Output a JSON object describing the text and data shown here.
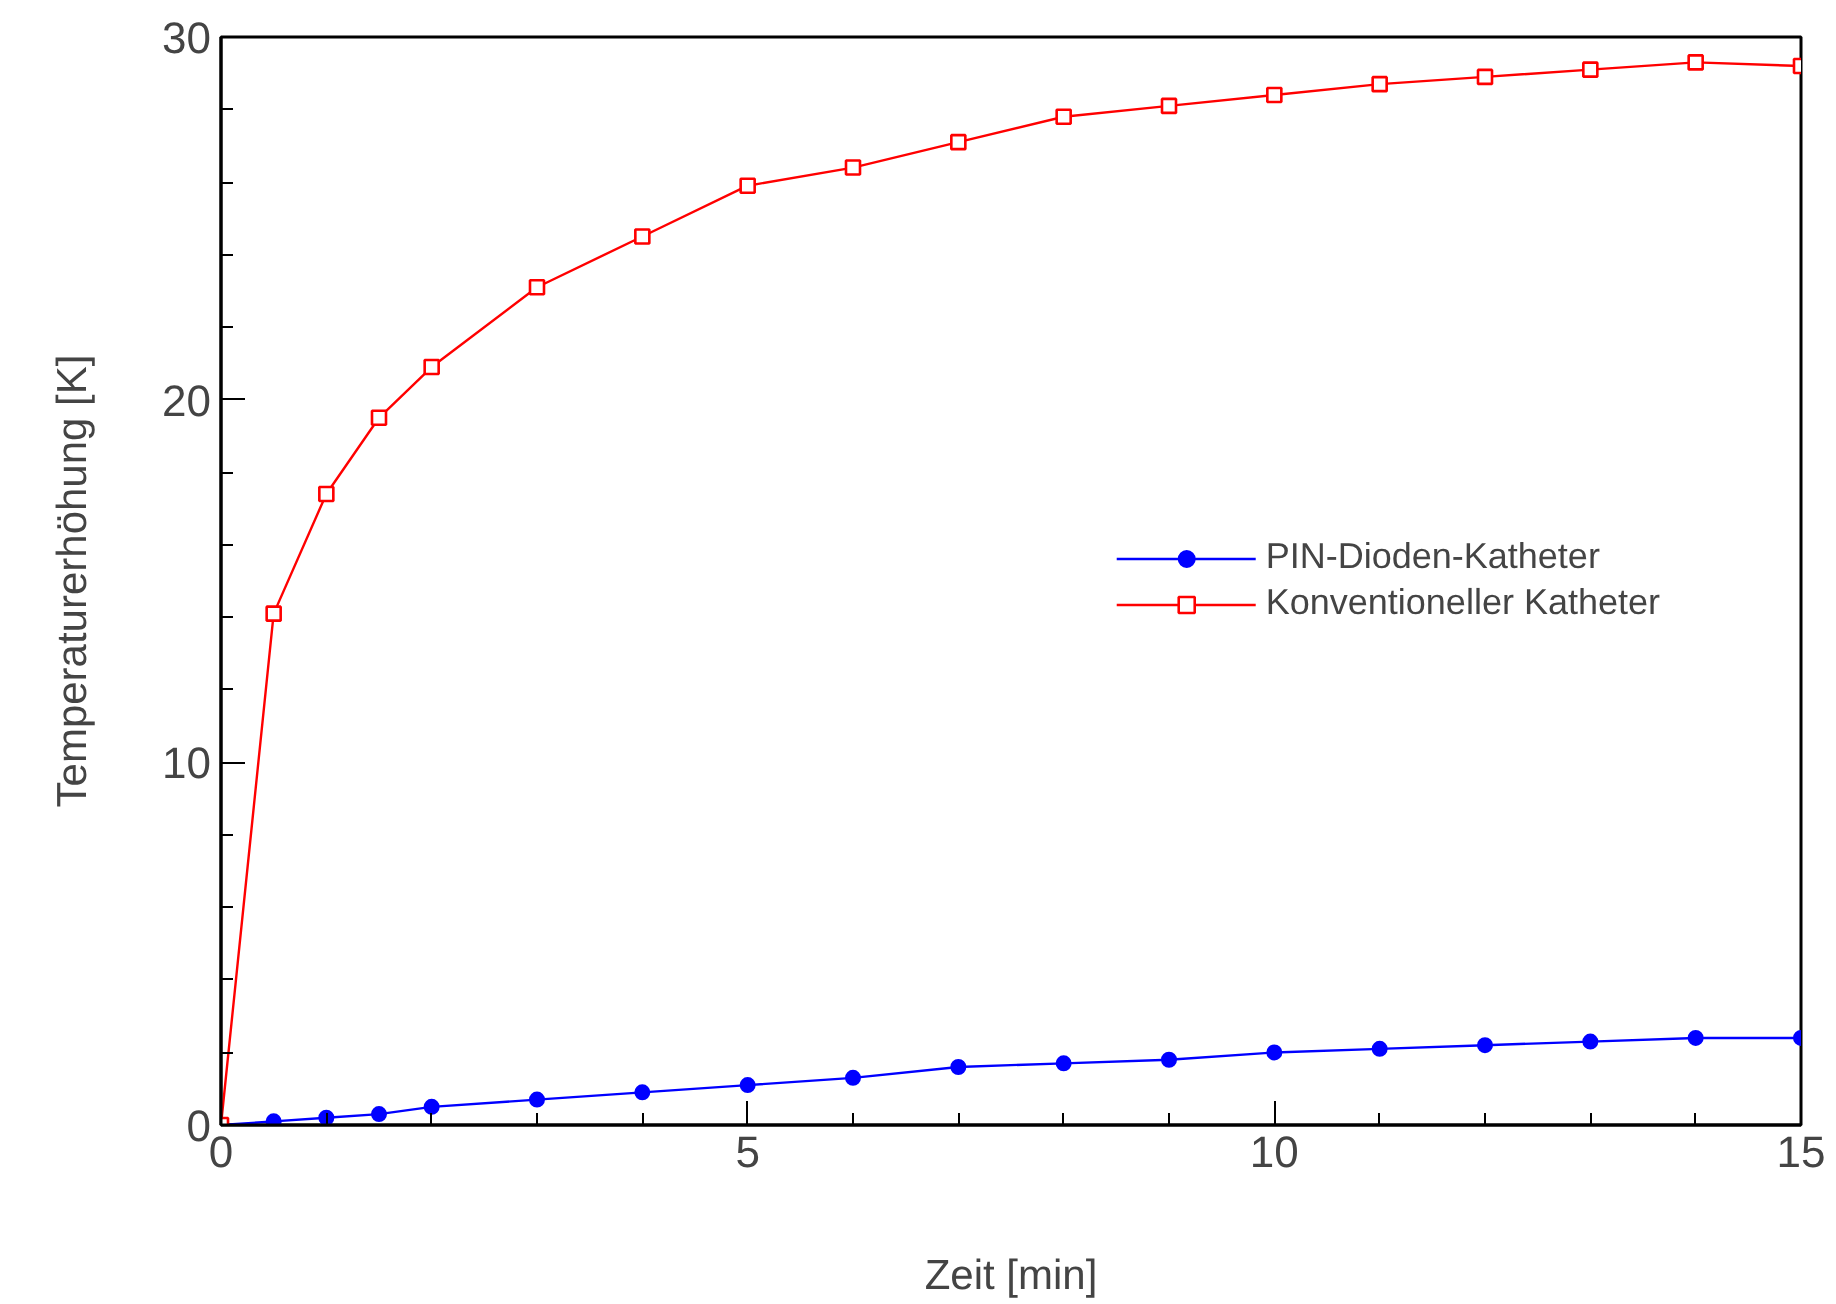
{
  "chart_data": {
    "type": "line",
    "xlabel": "Zeit [min]",
    "ylabel": "Temperaturerhöhung [K]",
    "x": [
      0,
      0.5,
      1,
      1.5,
      2,
      3,
      4,
      5,
      6,
      7,
      8,
      9,
      10,
      11,
      12,
      13,
      14,
      15
    ],
    "series": [
      {
        "name": "PIN-Dioden-Katheter",
        "color": "#0000ff",
        "marker": "circle",
        "values": [
          0,
          0.1,
          0.2,
          0.3,
          0.5,
          0.7,
          0.9,
          1.1,
          1.3,
          1.6,
          1.7,
          1.8,
          2.0,
          2.1,
          2.2,
          2.3,
          2.4,
          2.4
        ]
      },
      {
        "name": "Konventioneller Katheter",
        "color": "#ff0000",
        "marker": "square",
        "values": [
          0,
          14.1,
          17.4,
          19.5,
          20.9,
          23.1,
          24.5,
          25.9,
          26.4,
          27.1,
          27.8,
          28.1,
          28.4,
          28.7,
          28.9,
          29.1,
          29.3,
          29.2
        ]
      }
    ],
    "xlim": [
      0,
      15
    ],
    "xticks": [
      0,
      5,
      10,
      15
    ],
    "ylim": [
      0,
      30
    ],
    "yticks": [
      0,
      10,
      20,
      30
    ],
    "grid": false,
    "legend": "center right",
    "line_style": "solid"
  }
}
